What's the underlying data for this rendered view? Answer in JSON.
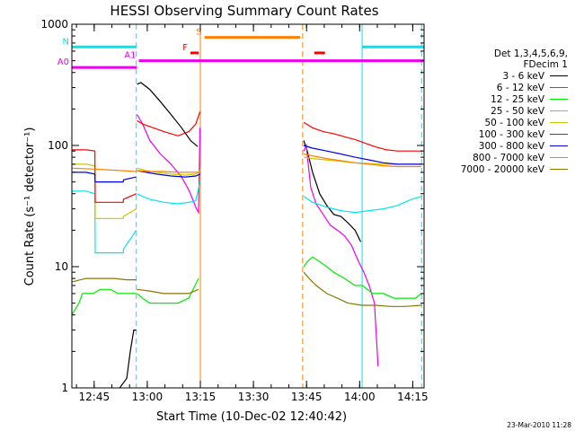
{
  "chart_data": {
    "type": "line",
    "title": "HESSI Observing Summary Count Rates",
    "xlabel": "Start Time (10-Dec-02 12:40:42)",
    "ylabel": "Count Rate (s⁻¹ detector⁻¹)",
    "yscale": "log",
    "ylim": [
      1,
      1000
    ],
    "xlim_minutes_after_start": [
      -2.0,
      97.5
    ],
    "x_unit": "minutes after 12:40:42",
    "xticks": [
      {
        "label": "12:45",
        "minutes": 4.3
      },
      {
        "label": "13:00",
        "minutes": 19.3
      },
      {
        "label": "13:15",
        "minutes": 34.3
      },
      {
        "label": "13:30",
        "minutes": 49.3
      },
      {
        "label": "13:45",
        "minutes": 64.3
      },
      {
        "label": "14:00",
        "minutes": 79.3
      },
      {
        "label": "14:15",
        "minutes": 94.3
      }
    ],
    "yticks": [
      {
        "label": "1",
        "value": 1
      },
      {
        "label": "10",
        "value": 10
      },
      {
        "label": "100",
        "value": 100
      },
      {
        "label": "1000",
        "value": 1000
      }
    ],
    "legend_header": [
      "Det 1,3,4,5,6,9,",
      "FDecim 1"
    ],
    "legend_position": "right",
    "flags": [
      {
        "label": "N",
        "color": "#00e5ee",
        "segments": [
          [
            -2.0,
            16.2
          ],
          [
            80.0,
            97.5
          ]
        ],
        "level": 650
      },
      {
        "label": "S",
        "color": "#ff8000",
        "segments": [
          [
            35.5,
            62.5
          ]
        ],
        "level": 780
      },
      {
        "label": "F",
        "color": "#ff0000",
        "segments": [
          [
            31.5,
            33.8
          ],
          [
            66.5,
            69.5
          ]
        ],
        "level": 580
      },
      {
        "label": "A0",
        "color": "#ee00ee",
        "segments": [
          [
            -2.0,
            16.4
          ]
        ],
        "level": 440
      },
      {
        "label": "A1",
        "color": "#ee00ee",
        "segments": [
          [
            16.9,
            97.5
          ]
        ],
        "level": 500
      }
    ],
    "vlines": [
      {
        "minutes": 16.2,
        "color": "#00e5ee",
        "style": "dashed"
      },
      {
        "minutes": 34.3,
        "color": "#ff8000",
        "style": "solid"
      },
      {
        "minutes": 63.2,
        "color": "#ff8000",
        "style": "dashed"
      },
      {
        "minutes": 80.0,
        "color": "#00e5ee",
        "style": "solid"
      },
      {
        "minutes": 96.8,
        "color": "#00e5ee",
        "style": "dashed"
      }
    ],
    "series": [
      {
        "name": "3 - 6 keV",
        "color": "#000000",
        "segments": [
          {
            "x": [
              11.5,
              13.5,
              14.5,
              15.5,
              16.2
            ],
            "y": [
              1,
              1.2,
              2.0,
              3.0,
              3.0
            ]
          },
          {
            "x": [
              16.4,
              17.5,
              20,
              23,
              26,
              29,
              31.5,
              33.5
            ],
            "y": [
              320,
              330,
              290,
              230,
              180,
              140,
              110,
              98
            ]
          },
          {
            "x": [
              63.5,
              64.5,
              66,
              68,
              70,
              72,
              74,
              76,
              78,
              79.6
            ],
            "y": [
              110,
              90,
              60,
              40,
              32,
              27,
              26,
              23,
              20,
              16
            ]
          }
        ]
      },
      {
        "name": "6 - 12 keV",
        "color": "#ee00ee",
        "segments": [
          {
            "x": [
              16.4,
              18,
              20,
              23,
              26,
              29,
              31.2,
              33.2,
              33.8,
              34.2
            ],
            "y": [
              180,
              150,
              110,
              85,
              70,
              55,
              42,
              30,
              28,
              140
            ]
          },
          {
            "x": [
              63.5,
              64.2,
              65.5,
              67,
              69,
              71,
              73,
              75,
              77,
              79,
              80.5,
              82,
              83.5,
              84.5
            ],
            "y": [
              90,
              100,
              45,
              33,
              27,
              22,
              20,
              18,
              15,
              11,
              9,
              7,
              5,
              1.5
            ]
          }
        ]
      },
      {
        "name": "12 - 25 keV",
        "color": "#00ee00",
        "segments": [
          {
            "x": [
              -2,
              0,
              1,
              4,
              6,
              9,
              11,
              13.5,
              15,
              16.2
            ],
            "y": [
              4,
              5,
              6,
              6,
              6.5,
              6.5,
              6,
              6,
              6,
              6
            ]
          },
          {
            "x": [
              16.4,
              18,
              20,
              24,
              28,
              31,
              33.8
            ],
            "y": [
              6,
              5.5,
              5,
              5,
              5,
              5.5,
              8
            ]
          },
          {
            "x": [
              63.5,
              64.5,
              66,
              68,
              70,
              72,
              75,
              78,
              80,
              83,
              86,
              89,
              92,
              95,
              96.8
            ],
            "y": [
              10,
              11,
              12,
              11,
              10,
              9,
              8,
              7,
              7,
              6,
              6,
              5.5,
              5.5,
              5.5,
              6
            ]
          }
        ]
      },
      {
        "name": "25 - 50 keV",
        "color": "#00e5ee",
        "segments": [
          {
            "x": [
              -2,
              2,
              4.5,
              4.6,
              8,
              11,
              12.5,
              12.6,
              16.2
            ],
            "y": [
              42,
              42,
              40,
              13,
              13,
              13,
              13,
              14,
              20
            ]
          },
          {
            "x": [
              16.4,
              18,
              20,
              24,
              28,
              31,
              33,
              34.2
            ],
            "y": [
              40,
              38,
              36,
              34,
              33,
              34,
              35,
              50
            ]
          },
          {
            "x": [
              63.5,
              66,
              70,
              74,
              78,
              82,
              86,
              90,
              94,
              96.8
            ],
            "y": [
              38,
              34,
              31,
              29,
              28,
              29,
              30,
              32,
              36,
              38
            ]
          }
        ]
      },
      {
        "name": "50 - 100 keV",
        "color": "#c8c800",
        "segments": [
          {
            "x": [
              -2,
              2,
              4.5,
              4.6,
              8,
              11,
              12.5,
              12.6,
              16.2
            ],
            "y": [
              70,
              70,
              68,
              25,
              25,
              25,
              25,
              26,
              30
            ]
          },
          {
            "x": [
              16.4,
              19,
              22,
              26,
              30,
              33,
              34.2
            ],
            "y": [
              65,
              62,
              60,
              58,
              57,
              58,
              62
            ]
          },
          {
            "x": [
              63.5,
              66,
              70,
              74,
              78,
              82,
              86,
              90,
              94,
              96.8
            ],
            "y": [
              80,
              78,
              76,
              74,
              72,
              71,
              70,
              70,
              70,
              70
            ]
          }
        ]
      },
      {
        "name": "100 - 300 keV",
        "color": "#ff0000",
        "segments": [
          {
            "x": [
              -2,
              2,
              4.5,
              4.6,
              8,
              11,
              12.5,
              12.6,
              16.2
            ],
            "y": [
              92,
              92,
              90,
              34,
              34,
              34,
              34,
              36,
              40
            ]
          },
          {
            "x": [
              16.4,
              18,
              21,
              24,
              28,
              31,
              33,
              34.2
            ],
            "y": [
              160,
              150,
              140,
              130,
              120,
              130,
              150,
              190
            ]
          },
          {
            "x": [
              63.5,
              66,
              69,
              72,
              75,
              78,
              81,
              84,
              87,
              90,
              93,
              96.8
            ],
            "y": [
              155,
              140,
              130,
              125,
              118,
              112,
              104,
              97,
              92,
              90,
              90,
              90
            ]
          }
        ]
      },
      {
        "name": "300 - 800 keV",
        "color": "#0000ee",
        "segments": [
          {
            "x": [
              -2,
              2,
              4.5,
              4.6,
              8,
              11,
              12.5,
              12.6,
              16.2
            ],
            "y": [
              60,
              60,
              58,
              50,
              50,
              50,
              50,
              52,
              55
            ]
          },
          {
            "x": [
              16.4,
              19,
              22,
              26,
              30,
              33,
              34.2
            ],
            "y": [
              62,
              60,
              58,
              56,
              55,
              56,
              58
            ]
          },
          {
            "x": [
              63.5,
              66,
              70,
              74,
              78,
              82,
              86,
              90,
              94,
              96.8
            ],
            "y": [
              100,
              95,
              90,
              85,
              80,
              76,
              72,
              70,
              70,
              70
            ]
          }
        ]
      },
      {
        "name": "800 - 7000 keV",
        "color": "#ff8000",
        "segments": [
          {
            "x": [
              -2,
              4,
              8,
              12,
              16.2
            ],
            "y": [
              65,
              64,
              63,
              62,
              61
            ]
          },
          {
            "x": [
              16.4,
              20,
              24,
              28,
              32,
              34.2
            ],
            "y": [
              62,
              61,
              61,
              60,
              60,
              60
            ]
          },
          {
            "x": [
              63.5,
              66,
              70,
              74,
              78,
              82,
              86,
              90,
              94,
              96.8
            ],
            "y": [
              85,
              82,
              78,
              75,
              72,
              70,
              68,
              67,
              67,
              67
            ]
          }
        ]
      },
      {
        "name": "7000 - 20000 keV",
        "color": "#8b7500",
        "segments": [
          {
            "x": [
              -2,
              2,
              6,
              10,
              13.5,
              16.2
            ],
            "y": [
              7.5,
              8,
              8,
              8,
              7.8,
              7.8
            ]
          },
          {
            "x": [
              16.4,
              20,
              24,
              28,
              31,
              33.8
            ],
            "y": [
              6.5,
              6.3,
              6,
              6,
              6,
              6.5
            ]
          },
          {
            "x": [
              63.5,
              65,
              67,
              70,
              73,
              76,
              80,
              84,
              88,
              92,
              96.8
            ],
            "y": [
              9,
              8,
              7,
              6,
              5.5,
              5,
              4.8,
              4.8,
              4.7,
              4.7,
              4.8
            ]
          }
        ]
      }
    ]
  },
  "footer": {
    "timestamp": "23-Mar-2010 11:28"
  }
}
